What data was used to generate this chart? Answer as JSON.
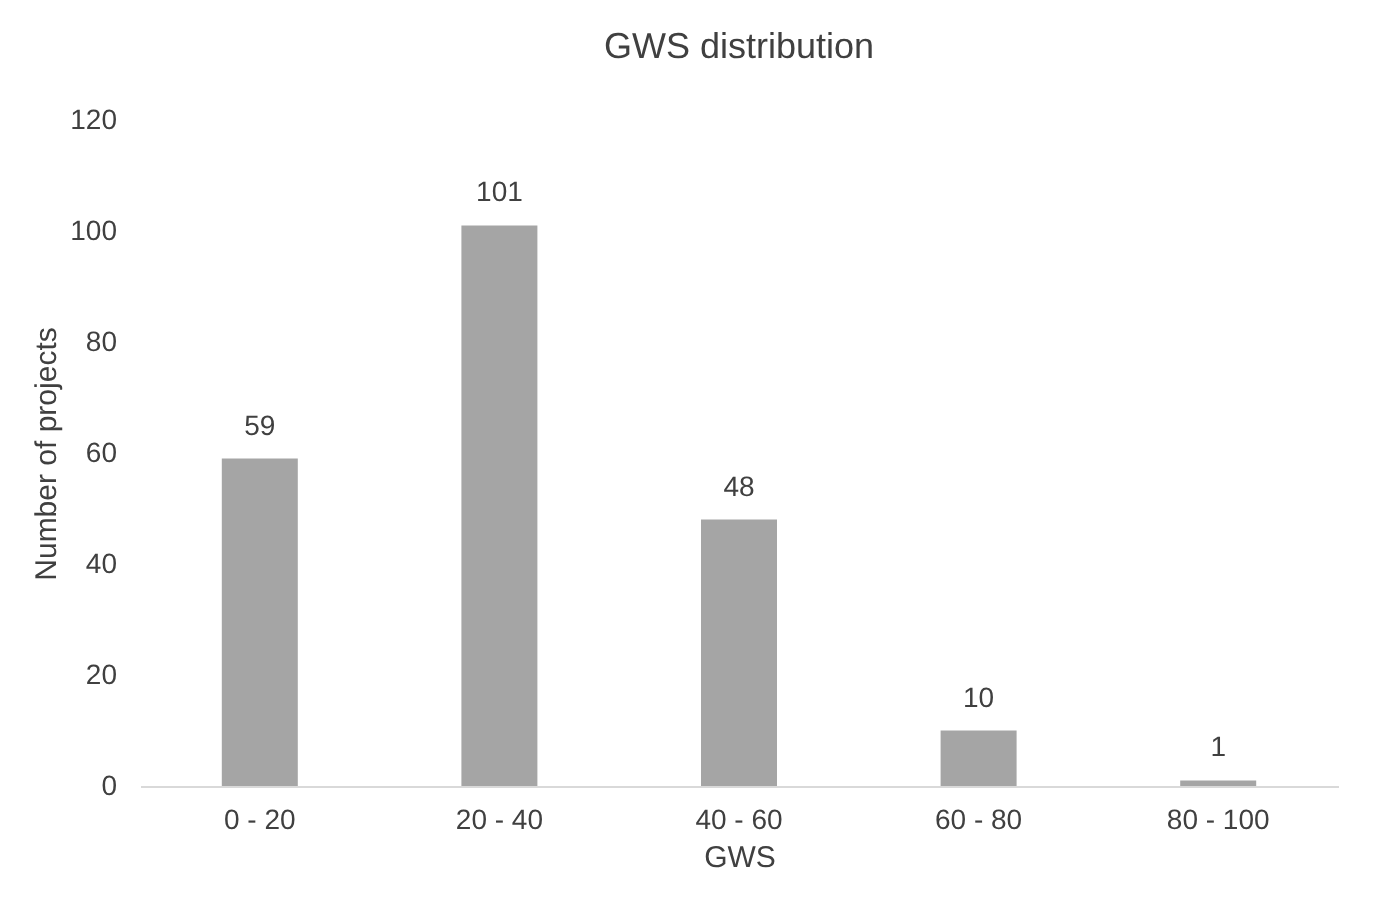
{
  "chart_data": {
    "type": "bar",
    "title": "GWS distribution",
    "xlabel": "GWS",
    "ylabel": "Number of projects",
    "categories": [
      "0 - 20",
      "20 - 40",
      "40 - 60",
      "60 - 80",
      "80 - 100"
    ],
    "values": [
      59,
      101,
      48,
      10,
      1
    ],
    "color": "#a5a5a5",
    "ylim": [
      0,
      120
    ],
    "yticks": [
      0,
      20,
      40,
      60,
      80,
      100,
      120
    ],
    "grid": false,
    "data_labels": true
  }
}
